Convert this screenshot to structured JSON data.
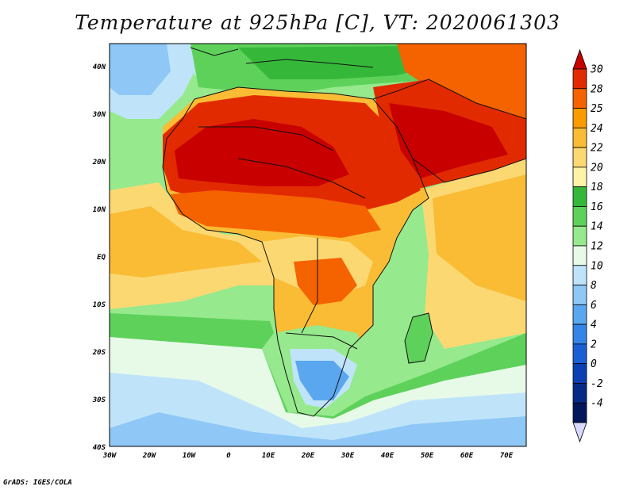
{
  "title": "Temperature at 925hPa [C], VT: 2020061303",
  "credit": "GrADS: IGES/COLA",
  "map": {
    "lat_range": [
      -40,
      45
    ],
    "lon_range": [
      -30,
      75
    ],
    "lat_ticks": [
      "40N",
      "30N",
      "20N",
      "10N",
      "EQ",
      "10S",
      "20S",
      "30S",
      "40S"
    ],
    "lon_ticks": [
      "30W",
      "20W",
      "10W",
      "0",
      "10E",
      "20E",
      "30E",
      "40E",
      "50E",
      "60E",
      "70E"
    ]
  },
  "colorbar": {
    "labels": [
      "30",
      "28",
      "25",
      "24",
      "22",
      "20",
      "18",
      "16",
      "14",
      "12",
      "10",
      "8",
      "6",
      "4",
      "2",
      "0",
      "-2",
      "-4"
    ],
    "colors": [
      "#c80000",
      "#e22a00",
      "#f56200",
      "#fa9b00",
      "#f9bc34",
      "#fcd873",
      "#fff3a8",
      "#35b83a",
      "#5ed15b",
      "#96e98d",
      "#e7fae8",
      "#bfe4fa",
      "#8fc8f6",
      "#5ba7ef",
      "#3584e7",
      "#1b5fd5",
      "#0b3fb3",
      "#062b85",
      "#02175a",
      "#d9d9ff"
    ]
  }
}
